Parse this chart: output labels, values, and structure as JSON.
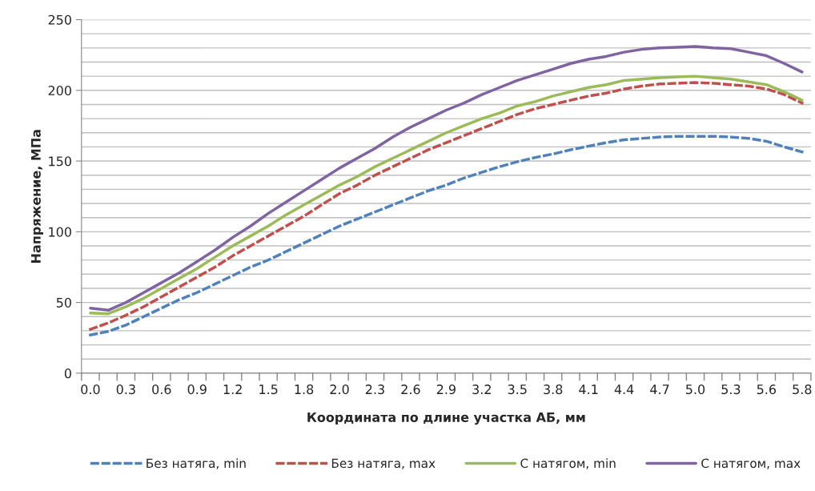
{
  "chart_data": {
    "type": "line",
    "xlabel": "Координата по длине участка АБ, мм",
    "ylabel": "Напряжение, МПа",
    "categories": [
      "0.0",
      null,
      "0.3",
      null,
      "0.6",
      null,
      "0.9",
      null,
      "1.2",
      null,
      "1.5",
      null,
      "1.8",
      null,
      "2.0",
      null,
      "2.3",
      null,
      "2.6",
      null,
      "2.9",
      null,
      "3.2",
      null,
      "3.5",
      null,
      "3.8",
      null,
      "4.1",
      null,
      "4.4",
      null,
      "4.7",
      null,
      "5.0",
      null,
      "5.3",
      null,
      "5.6",
      null,
      "5.8"
    ],
    "ylim": [
      0,
      250
    ],
    "yticks": [
      0,
      {
        "value": 10,
        "label": null
      },
      {
        "value": 20,
        "label": null
      },
      {
        "value": 30,
        "label": null
      },
      {
        "value": 40,
        "label": null
      },
      50,
      {
        "value": 60,
        "label": null
      },
      {
        "value": 70,
        "label": null
      },
      {
        "value": 80,
        "label": null
      },
      {
        "value": 90,
        "label": null
      },
      100,
      {
        "value": 110,
        "label": null
      },
      {
        "value": 120,
        "label": null
      },
      {
        "value": 130,
        "label": null
      },
      {
        "value": 140,
        "label": null
      },
      150,
      {
        "value": 160,
        "label": null
      },
      {
        "value": 170,
        "label": null
      },
      {
        "value": 180,
        "label": null
      },
      {
        "value": 190,
        "label": null
      },
      200,
      {
        "value": 210,
        "label": null
      },
      {
        "value": 220,
        "label": null
      },
      {
        "value": 230,
        "label": null
      },
      {
        "value": 240,
        "label": null
      },
      250
    ],
    "grid": "y",
    "legend": "bottom",
    "marker": "none",
    "series": [
      {
        "name": "Без натяга, min",
        "color": "#4f81bd",
        "line_style": "dashed",
        "values": [
          27,
          29.5,
          34,
          40,
          46,
          52,
          57,
          63,
          69,
          75,
          80,
          86,
          92,
          98,
          104,
          109,
          114,
          119,
          124,
          129,
          133,
          138,
          142,
          146,
          149.5,
          152.5,
          155,
          158,
          160.5,
          163,
          165,
          166,
          167,
          167.5,
          167.5,
          167.5,
          167,
          166,
          164,
          160,
          156.5
        ]
      },
      {
        "name": "Без натяга, max",
        "color": "#c0504d",
        "line_style": "dashed",
        "values": [
          31,
          35.5,
          41,
          47,
          54,
          61,
          68,
          75,
          83,
          90,
          97,
          104,
          111,
          119,
          127,
          133,
          140,
          146,
          152,
          158,
          163,
          168,
          173,
          178,
          183,
          187,
          190,
          193,
          196,
          198,
          201,
          203,
          204.5,
          205,
          205.5,
          205,
          204,
          203,
          201,
          197,
          191
        ]
      },
      {
        "name": "С натягом, min",
        "color": "#9bbb59",
        "line_style": "solid",
        "values": [
          42.5,
          42,
          47,
          53,
          60,
          67,
          74,
          82,
          90,
          97,
          104,
          112,
          119,
          126,
          133,
          139,
          146,
          152,
          158,
          164,
          170,
          175,
          180,
          184,
          189,
          192,
          196,
          199,
          202,
          204,
          207,
          208,
          209,
          209.5,
          210,
          209,
          208,
          206,
          204,
          199,
          193
        ]
      },
      {
        "name": "С натягом, max",
        "color": "#8064a2",
        "line_style": "solid",
        "values": [
          46,
          44.5,
          50,
          57,
          64,
          71,
          79,
          87,
          96,
          104,
          113,
          121,
          129,
          137,
          145,
          152,
          159,
          167,
          174,
          180,
          186,
          191,
          197,
          202,
          207,
          211,
          215,
          219,
          222,
          224,
          227,
          229,
          230,
          230.5,
          231,
          230,
          229.5,
          227,
          224.5,
          219,
          213
        ]
      }
    ]
  }
}
